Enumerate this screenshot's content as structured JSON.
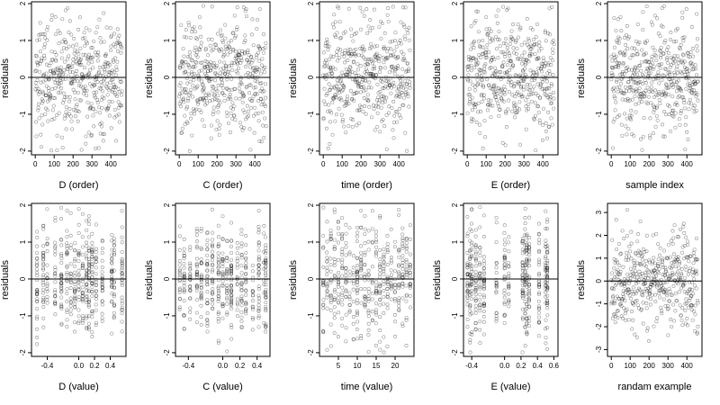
{
  "chart_data": [
    {
      "type": "scatter",
      "xlabel": "D (order)",
      "ylabel": "residuals",
      "xlim": [
        -20,
        480
      ],
      "ylim": [
        -2.1,
        2.05
      ],
      "xticks": [
        0,
        100,
        200,
        300,
        400
      ],
      "xtick_labels": [
        "0",
        "100",
        "200",
        "300",
        "400"
      ],
      "yticks": [
        -2,
        -1,
        0,
        1,
        2
      ],
      "ytick_labels": [
        "-2",
        "-1",
        "0",
        "1",
        "2"
      ],
      "baseline": 0,
      "x_kind": "index",
      "n_points": 460,
      "spread": 0.75,
      "ymin": -2.0,
      "ymax": 1.95
    },
    {
      "type": "scatter",
      "xlabel": "C (order)",
      "ylabel": "residuals",
      "xlim": [
        -20,
        480
      ],
      "ylim": [
        -2.1,
        2.05
      ],
      "xticks": [
        0,
        100,
        200,
        300,
        400
      ],
      "xtick_labels": [
        "0",
        "100",
        "200",
        "300",
        "400"
      ],
      "yticks": [
        -2,
        -1,
        0,
        1,
        2
      ],
      "ytick_labels": [
        "-2",
        "-1",
        "0",
        "1",
        "2"
      ],
      "baseline": 0,
      "x_kind": "index",
      "n_points": 460,
      "spread": 0.75,
      "ymin": -2.0,
      "ymax": 1.95
    },
    {
      "type": "scatter",
      "xlabel": "time (order)",
      "ylabel": "residuals",
      "xlim": [
        -20,
        480
      ],
      "ylim": [
        -2.1,
        2.05
      ],
      "xticks": [
        0,
        100,
        200,
        300,
        400
      ],
      "xtick_labels": [
        "0",
        "100",
        "200",
        "300",
        "400"
      ],
      "yticks": [
        -2,
        -1,
        0,
        1,
        2
      ],
      "ytick_labels": [
        "-2",
        "-1",
        "0",
        "1",
        "2"
      ],
      "baseline": 0,
      "x_kind": "index",
      "n_points": 460,
      "spread": 0.75,
      "ymin": -2.0,
      "ymax": 1.95
    },
    {
      "type": "scatter",
      "xlabel": "E (order)",
      "ylabel": "residuals",
      "xlim": [
        -20,
        480
      ],
      "ylim": [
        -2.1,
        2.05
      ],
      "xticks": [
        0,
        100,
        200,
        300,
        400
      ],
      "xtick_labels": [
        "0",
        "100",
        "200",
        "300",
        "400"
      ],
      "yticks": [
        -2,
        -1,
        0,
        1,
        2
      ],
      "ytick_labels": [
        "-2",
        "-1",
        "0",
        "1",
        "2"
      ],
      "baseline": 0,
      "x_kind": "index",
      "n_points": 460,
      "spread": 0.75,
      "ymin": -2.0,
      "ymax": 1.95
    },
    {
      "type": "scatter",
      "xlabel": "sample index",
      "ylabel": "residuals",
      "xlim": [
        -20,
        480
      ],
      "ylim": [
        -2.1,
        2.05
      ],
      "xticks": [
        0,
        100,
        200,
        300,
        400
      ],
      "xtick_labels": [
        "0",
        "100",
        "200",
        "300",
        "400"
      ],
      "yticks": [
        -2,
        -1,
        0,
        1,
        2
      ],
      "ytick_labels": [
        "-2",
        "-1",
        "0",
        "1",
        "2"
      ],
      "baseline": 0,
      "x_kind": "index",
      "n_points": 460,
      "spread": 0.75,
      "ymin": -2.0,
      "ymax": 1.95
    },
    {
      "type": "scatter",
      "xlabel": "D (value)",
      "ylabel": "residuals",
      "xlim": [
        -0.6,
        0.6
      ],
      "ylim": [
        -2.1,
        2.05
      ],
      "xticks": [
        -0.4,
        0.0,
        0.2,
        0.4
      ],
      "xtick_labels": [
        "-0.4",
        "0.0",
        "0.2",
        "0.4"
      ],
      "yticks": [
        -2,
        -1,
        0,
        1,
        2
      ],
      "ytick_labels": [
        "-2",
        "-1",
        "0",
        "1",
        "2"
      ],
      "baseline": 0,
      "x_kind": "levels",
      "levels": [
        -0.53,
        -0.45,
        -0.4,
        -0.3,
        -0.22,
        -0.15,
        -0.1,
        -0.05,
        0.0,
        0.05,
        0.1,
        0.13,
        0.17,
        0.22,
        0.3,
        0.42,
        0.45,
        0.55
      ],
      "n_points": 460,
      "spread": 0.75,
      "ymin": -2.0,
      "ymax": 1.95
    },
    {
      "type": "scatter",
      "xlabel": "C (value)",
      "ylabel": "residuals",
      "xlim": [
        -0.55,
        0.55
      ],
      "ylim": [
        -2.1,
        2.05
      ],
      "xticks": [
        -0.4,
        0.0,
        0.2,
        0.4
      ],
      "xtick_labels": [
        "-0.4",
        "0.0",
        "0.2",
        "0.4"
      ],
      "yticks": [
        -2,
        -1,
        0,
        1,
        2
      ],
      "ytick_labels": [
        "-2",
        "-1",
        "0",
        "1",
        "2"
      ],
      "baseline": 0,
      "x_kind": "levels",
      "levels": [
        -0.5,
        -0.45,
        -0.38,
        -0.3,
        -0.25,
        -0.18,
        -0.12,
        -0.05,
        0.0,
        0.05,
        0.1,
        0.17,
        0.22,
        0.27,
        0.35,
        0.42,
        0.48,
        0.5
      ],
      "n_points": 460,
      "spread": 0.75,
      "ymin": -2.0,
      "ymax": 1.95
    },
    {
      "type": "scatter",
      "xlabel": "time (value)",
      "ylabel": "residuals",
      "xlim": [
        0,
        25
      ],
      "ylim": [
        -2.1,
        2.05
      ],
      "xticks": [
        5,
        10,
        15,
        20
      ],
      "xtick_labels": [
        "5",
        "10",
        "15",
        "20"
      ],
      "yticks": [
        -2,
        -1,
        0,
        1,
        2
      ],
      "ytick_labels": [
        "-2",
        "-1",
        "0",
        "1",
        "2"
      ],
      "baseline": 0,
      "x_kind": "levels",
      "levels": [
        1,
        2,
        3,
        4,
        5,
        6,
        7,
        8,
        9,
        10,
        11,
        12,
        13,
        14,
        15,
        16,
        17,
        18,
        19,
        20,
        21,
        22,
        23,
        24
      ],
      "n_points": 460,
      "spread": 0.75,
      "ymin": -2.0,
      "ymax": 1.95
    },
    {
      "type": "scatter",
      "xlabel": "E (value)",
      "ylabel": "residuals",
      "xlim": [
        -0.5,
        0.65
      ],
      "ylim": [
        -2.1,
        2.05
      ],
      "xticks": [
        -0.4,
        0.0,
        0.2,
        0.4,
        0.6
      ],
      "xtick_labels": [
        "-0.4",
        "0.0",
        "0.2",
        "0.4",
        "0.6"
      ],
      "yticks": [
        -2,
        -1,
        0,
        1,
        2
      ],
      "ytick_labels": [
        "-2",
        "-1",
        "0",
        "1",
        "2"
      ],
      "baseline": 0,
      "x_kind": "levels",
      "levels": [
        -0.45,
        -0.42,
        -0.4,
        -0.35,
        -0.3,
        -0.25,
        -0.1,
        0.0,
        0.05,
        0.22,
        0.25,
        0.27,
        0.3,
        0.42,
        0.5,
        0.52
      ],
      "n_points": 460,
      "spread": 0.75,
      "ymin": -2.0,
      "ymax": 1.95
    },
    {
      "type": "scatter",
      "xlabel": "randam example",
      "ylabel": "residuals",
      "xlim": [
        -20,
        480
      ],
      "ylim": [
        -3.3,
        3.4
      ],
      "xticks": [
        0,
        100,
        200,
        300,
        400
      ],
      "xtick_labels": [
        "0",
        "100",
        "200",
        "300",
        "400"
      ],
      "yticks": [
        -3,
        -2,
        -1,
        0,
        1,
        2,
        3
      ],
      "ytick_labels": [
        "-3",
        "-2",
        "-1",
        "0",
        "1",
        "2",
        "3"
      ],
      "baseline": 0,
      "x_kind": "index",
      "n_points": 460,
      "spread": 1.0,
      "ymin": -3.0,
      "ymax": 3.2
    }
  ]
}
